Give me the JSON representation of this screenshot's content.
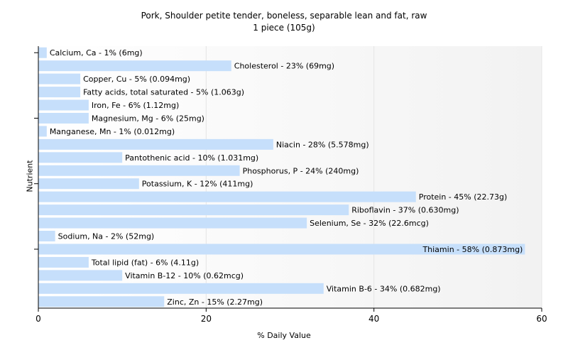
{
  "chart_data": {
    "type": "bar",
    "orientation": "horizontal",
    "title": "Pork, Shoulder petite tender, boneless, separable lean and fat, raw",
    "subtitle": "1 piece (105g)",
    "xlabel": "% Daily Value",
    "ylabel": "Nutrient",
    "xlim": [
      0,
      60
    ],
    "xticks": [
      0,
      20,
      40,
      60
    ],
    "grid": true,
    "bar_color": "#c6dffb",
    "categories": [
      "Calcium, Ca",
      "Cholesterol",
      "Copper, Cu",
      "Fatty acids, total saturated",
      "Iron, Fe",
      "Magnesium, Mg",
      "Manganese, Mn",
      "Niacin",
      "Pantothenic acid",
      "Phosphorus, P",
      "Potassium, K",
      "Protein",
      "Riboflavin",
      "Selenium, Se",
      "Sodium, Na",
      "Thiamin",
      "Total lipid (fat)",
      "Vitamin B-12",
      "Vitamin B-6",
      "Zinc, Zn"
    ],
    "values": [
      1,
      23,
      5,
      5,
      6,
      6,
      1,
      28,
      10,
      24,
      12,
      45,
      37,
      32,
      2,
      58,
      6,
      10,
      34,
      15
    ],
    "labels": [
      "Calcium, Ca - 1% (6mg)",
      "Cholesterol - 23% (69mg)",
      "Copper, Cu - 5% (0.094mg)",
      "Fatty acids, total saturated - 5% (1.063g)",
      "Iron, Fe - 6% (1.12mg)",
      "Magnesium, Mg - 6% (25mg)",
      "Manganese, Mn - 1% (0.012mg)",
      "Niacin - 28% (5.578mg)",
      "Pantothenic acid - 10% (1.031mg)",
      "Phosphorus, P - 24% (240mg)",
      "Potassium, K - 12% (411mg)",
      "Protein - 45% (22.73g)",
      "Riboflavin - 37% (0.630mg)",
      "Selenium, Se - 32% (22.6mcg)",
      "Sodium, Na - 2% (52mg)",
      "Thiamin - 58% (0.873mg)",
      "Total lipid (fat) - 6% (4.11g)",
      "Vitamin B-12 - 10% (0.62mcg)",
      "Vitamin B-6 - 34% (0.682mg)",
      "Zinc, Zn - 15% (2.27mg)"
    ]
  }
}
